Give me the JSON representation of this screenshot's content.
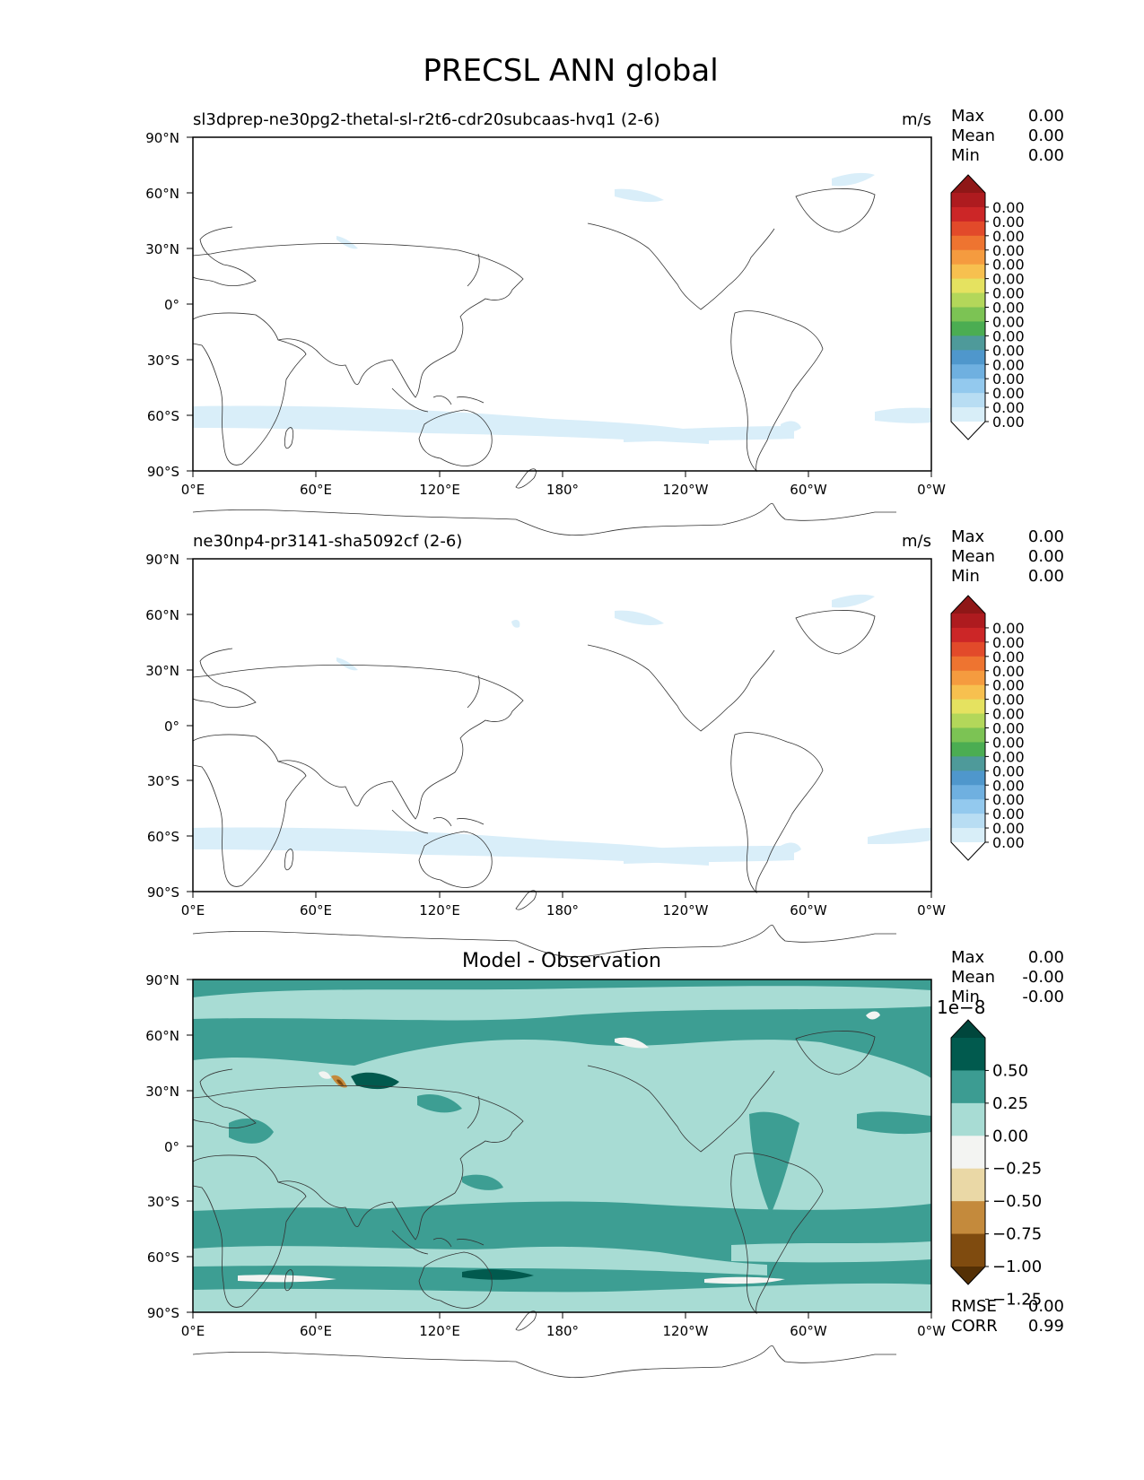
{
  "title": "PRECSL ANN global",
  "panels": [
    {
      "id": "test",
      "title": "sl3dprep-ne30pg2-thetal-sl-r2t6-cdr20subcaas-hvq1 (2-6)",
      "units": "m/s",
      "stats": [
        {
          "label": "Max",
          "value": "0.00"
        },
        {
          "label": "Mean",
          "value": "0.00"
        },
        {
          "label": "Min",
          "value": "0.00"
        }
      ],
      "colorbar": {
        "colors": [
          "#ffffff",
          "#d8eef8",
          "#b8ddf3",
          "#93c9ee",
          "#6fb0e0",
          "#4f97cc",
          "#4e9a9a",
          "#4bad52",
          "#7cc354",
          "#b3d75a",
          "#e5e260",
          "#f7c04f",
          "#f59b3f",
          "#ee7430",
          "#e24a2a",
          "#cc2627",
          "#ae1b1f",
          "#8f1717"
        ],
        "labels": [
          "0.00",
          "0.00",
          "0.00",
          "0.00",
          "0.00",
          "0.00",
          "0.00",
          "0.00",
          "0.00",
          "0.00",
          "0.00",
          "0.00",
          "0.00",
          "0.00",
          "0.00",
          "0.00"
        ]
      }
    },
    {
      "id": "reference",
      "title": "ne30np4-pr3141-sha5092cf (2-6)",
      "units": "m/s",
      "stats": [
        {
          "label": "Max",
          "value": "0.00"
        },
        {
          "label": "Mean",
          "value": "0.00"
        },
        {
          "label": "Min",
          "value": "0.00"
        }
      ],
      "colorbar": {
        "colors": [
          "#ffffff",
          "#d8eef8",
          "#b8ddf3",
          "#93c9ee",
          "#6fb0e0",
          "#4f97cc",
          "#4e9a9a",
          "#4bad52",
          "#7cc354",
          "#b3d75a",
          "#e5e260",
          "#f7c04f",
          "#f59b3f",
          "#ee7430",
          "#e24a2a",
          "#cc2627",
          "#ae1b1f",
          "#8f1717"
        ],
        "labels": [
          "0.00",
          "0.00",
          "0.00",
          "0.00",
          "0.00",
          "0.00",
          "0.00",
          "0.00",
          "0.00",
          "0.00",
          "0.00",
          "0.00",
          "0.00",
          "0.00",
          "0.00",
          "0.00"
        ]
      }
    },
    {
      "id": "diff",
      "title": "Model - Observation",
      "units": "",
      "stats": [
        {
          "label": "Max",
          "value": "0.00"
        },
        {
          "label": "Mean",
          "value": "-0.00"
        },
        {
          "label": "Min",
          "value": "-0.00"
        }
      ],
      "extra_stats": [
        {
          "label": "RMSE",
          "value": "0.00"
        },
        {
          "label": "CORR",
          "value": "0.99"
        }
      ],
      "colorbar": {
        "scale_label": "1e−8",
        "colors": [
          "#543005",
          "#7f4b0f",
          "#c48a3c",
          "#ead8a6",
          "#f3f4f2",
          "#a8dcd4",
          "#3c9c92",
          "#015a4e",
          "#00463c"
        ],
        "labels": [
          "0.50",
          "0.25",
          "0.00",
          "−0.25",
          "−0.50",
          "−0.75",
          "−1.00",
          "−1.25"
        ]
      }
    }
  ],
  "axes": {
    "lat_ticks": [
      "90°N",
      "60°N",
      "30°N",
      "0°",
      "30°S",
      "60°S",
      "90°S"
    ],
    "lon_ticks": [
      "0°E",
      "60°E",
      "120°E",
      "180°",
      "120°W",
      "60°W",
      "0°W"
    ]
  },
  "colors": {
    "light_blue": "#d9eef9",
    "diff_light": "#a8dcd4",
    "diff_mid": "#3d9e93",
    "diff_dark": "#015a4e",
    "coast": "#333333"
  }
}
